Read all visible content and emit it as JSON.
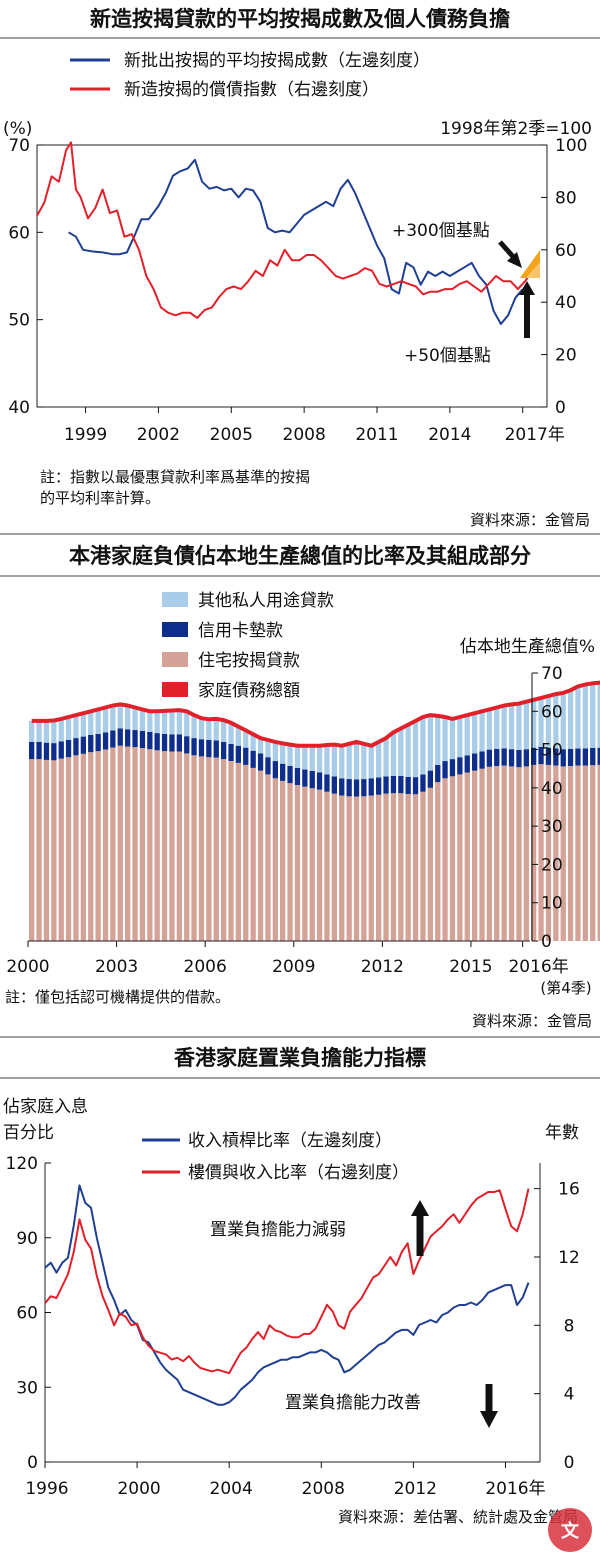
{
  "colors": {
    "blue": "#1f3f93",
    "red": "#e2202a",
    "light_blue": "#a9cde9",
    "navy": "#0e2e8c",
    "pink": "#d4a297",
    "ink": "#111111"
  },
  "chart_data": [
    {
      "type": "line",
      "title": "新造按揭貸款的平均按揭成數及個人債務負擔",
      "legend": [
        "新批出按揭的平均按揭成數（左邊刻度）",
        "新造按揭的償債指數（右邊刻度）"
      ],
      "left_unit": "(%)",
      "right_unit": "1998年第2季=100",
      "left_ticks": [
        "40",
        "50",
        "60",
        "70"
      ],
      "right_ticks": [
        "0",
        "20",
        "40",
        "60",
        "80",
        "100"
      ],
      "left_ylim": [
        40,
        70
      ],
      "right_ylim": [
        0,
        100
      ],
      "xlim": [
        1997,
        2018
      ],
      "x_ticks": [
        1999,
        2002,
        2005,
        2008,
        2011,
        2014,
        2017
      ],
      "x_tick_labels": [
        "1999",
        "2002",
        "2005",
        "2008",
        "2011",
        "2014",
        "2017年"
      ],
      "annotations": [
        "+300個基點",
        "+50個基點"
      ],
      "note_lines": [
        "註：指數以最優惠貸款利率爲基準的按揭",
        "的平均利率計算。"
      ],
      "source": "資料來源：金管局",
      "series": [
        {
          "name": "平均按揭成數",
          "axis": "left",
          "x": [
            1998.3,
            1998.6,
            1998.9,
            1999.3,
            1999.7,
            2000.1,
            2000.4,
            2000.7,
            2001.0,
            2001.3,
            2001.6,
            2002.0,
            2002.3,
            2002.6,
            2002.9,
            2003.2,
            2003.5,
            2003.8,
            2004.1,
            2004.4,
            2004.7,
            2005.0,
            2005.3,
            2005.6,
            2005.9,
            2006.2,
            2006.5,
            2006.8,
            2007.1,
            2007.4,
            2007.7,
            2008.0,
            2008.3,
            2008.6,
            2008.9,
            2009.2,
            2009.5,
            2009.8,
            2010.1,
            2010.4,
            2010.7,
            2011.0,
            2011.3,
            2011.6,
            2011.9,
            2012.2,
            2012.5,
            2012.8,
            2013.1,
            2013.4,
            2013.7,
            2014.0,
            2014.3,
            2014.6,
            2014.9,
            2015.2,
            2015.5,
            2015.8,
            2016.1,
            2016.4,
            2016.7,
            2017.0
          ],
          "values": [
            60,
            59.5,
            58,
            57.8,
            57.7,
            57.5,
            57.5,
            57.7,
            59.5,
            61.5,
            61.5,
            63,
            64.5,
            66.5,
            67,
            67.3,
            68.3,
            65.8,
            65,
            65.2,
            64.8,
            65,
            64,
            65,
            64.8,
            63.5,
            60.5,
            60,
            60.2,
            60,
            61,
            62,
            62.5,
            63,
            63.5,
            63,
            65,
            66,
            64.5,
            62.5,
            60.5,
            58.5,
            57,
            53.5,
            53,
            56.5,
            56,
            54,
            55.5,
            55,
            55.5,
            55,
            55.5,
            56,
            56.5,
            55,
            54,
            51,
            49.5,
            50.5,
            52.5,
            53.5
          ]
        },
        {
          "name": "償債指數",
          "axis": "right",
          "x": [
            1997.0,
            1997.3,
            1997.6,
            1997.9,
            1998.2,
            1998.4,
            1998.6,
            1998.8,
            1999.1,
            1999.4,
            1999.7,
            2000.0,
            2000.3,
            2000.6,
            2000.9,
            2001.2,
            2001.5,
            2001.8,
            2002.1,
            2002.4,
            2002.7,
            2003.0,
            2003.3,
            2003.6,
            2003.9,
            2004.2,
            2004.5,
            2004.8,
            2005.1,
            2005.4,
            2005.7,
            2006.0,
            2006.3,
            2006.6,
            2006.9,
            2007.2,
            2007.5,
            2007.8,
            2008.1,
            2008.4,
            2008.7,
            2009.0,
            2009.3,
            2009.6,
            2009.9,
            2010.2,
            2010.5,
            2010.8,
            2011.1,
            2011.4,
            2011.7,
            2012.0,
            2012.3,
            2012.6,
            2012.9,
            2013.2,
            2013.5,
            2013.8,
            2014.1,
            2014.4,
            2014.7,
            2015.0,
            2015.3,
            2015.6,
            2015.9,
            2016.2,
            2016.5,
            2016.8,
            2017.1,
            2017.4
          ],
          "values": [
            73,
            78,
            88,
            86,
            98,
            101,
            83,
            80,
            72,
            76,
            83,
            74,
            75,
            65,
            66,
            60,
            50,
            45,
            38,
            36,
            35,
            36,
            36,
            34,
            37,
            38,
            42,
            45,
            46,
            45,
            48,
            52,
            50,
            56,
            54,
            60,
            56,
            56,
            58,
            58,
            56,
            53,
            50,
            49,
            50,
            51,
            53,
            52,
            47,
            46,
            47,
            48,
            47,
            46,
            43,
            44,
            44,
            45,
            45,
            47,
            48,
            46,
            44,
            47,
            50,
            48,
            48,
            45,
            48,
            52
          ]
        }
      ]
    },
    {
      "type": "bar",
      "title": "本港家庭負債佔本地生產總值的比率及其組成部分",
      "legend": [
        "其他私人用途貸款",
        "信用卡墊款",
        "住宅按揭貸款",
        "家庭債務總額"
      ],
      "right_unit": "佔本地生產總值%",
      "y_ticks": [
        "0",
        "10",
        "20",
        "30",
        "40",
        "50",
        "60",
        "70"
      ],
      "ylim": [
        0,
        70
      ],
      "xlim": [
        2000,
        2017
      ],
      "x_ticks": [
        2000,
        2003,
        2006,
        2009,
        2012,
        2015,
        2016.75
      ],
      "x_tick_labels": [
        "2000",
        "2003",
        "2006",
        "2009",
        "2012",
        "2015",
        "2016年"
      ],
      "x_sublabel": "(第4季)",
      "note": "註：僅包括認可機構提供的借款。",
      "source": "資料來源：金管局",
      "bar_start": 2000.125,
      "bar_step": 0.25,
      "mortgage": [
        47.5,
        47.5,
        47.3,
        47.2,
        47.6,
        48.0,
        48.5,
        48.9,
        49.3,
        49.6,
        50.0,
        50.5,
        51.0,
        50.8,
        50.6,
        50.4,
        50.1,
        49.8,
        49.6,
        49.5,
        49.5,
        49.0,
        48.5,
        48.2,
        48.0,
        47.9,
        47.5,
        47.0,
        46.5,
        46.0,
        45.2,
        44.5,
        43.5,
        42.5,
        41.8,
        41.2,
        40.7,
        40.3,
        39.9,
        39.5,
        39.0,
        38.5,
        38.0,
        37.8,
        37.7,
        37.8,
        38.0,
        38.2,
        38.5,
        38.6,
        38.6,
        38.4,
        38.3,
        39.0,
        40.0,
        41.5,
        42.5,
        43.0,
        43.5,
        44.0,
        44.5,
        45.0,
        45.5,
        45.7,
        45.8,
        45.6,
        45.4,
        45.6,
        46.0,
        46.2,
        46.0,
        45.8,
        45.6,
        45.7,
        45.8,
        45.8,
        45.9,
        46.0,
        46.2,
        46.5,
        46.8,
        47.0,
        47.2,
        47.4,
        47.5,
        47.6,
        47.7,
        47.8
      ],
      "card": [
        4.5,
        4.5,
        4.5,
        4.5,
        4.5,
        4.5,
        4.5,
        4.5,
        4.5,
        4.5,
        4.5,
        4.5,
        4.5,
        4.5,
        4.5,
        4.5,
        4.5,
        4.5,
        4.5,
        4.5,
        4.5,
        4.5,
        4.5,
        4.5,
        4.5,
        4.5,
        4.5,
        4.5,
        4.5,
        4.5,
        4.5,
        4.5,
        4.5,
        4.5,
        4.5,
        4.5,
        4.5,
        4.5,
        4.5,
        4.5,
        4.5,
        4.5,
        4.5,
        4.5,
        4.5,
        4.5,
        4.5,
        4.5,
        4.5,
        4.5,
        4.5,
        4.5,
        4.5,
        4.5,
        4.5,
        4.5,
        4.5,
        4.5,
        4.5,
        4.5,
        4.5,
        4.5,
        4.5,
        4.5,
        4.5,
        4.5,
        4.5,
        4.5,
        4.5,
        4.5,
        4.5,
        4.5,
        4.5,
        4.5,
        4.5,
        4.5,
        4.5,
        4.5,
        4.5,
        4.5,
        4.5,
        4.5,
        4.5,
        4.5,
        4.5,
        4.5,
        4.5,
        4.5
      ],
      "total": [
        57.5,
        57.5,
        57.5,
        57.6,
        58.0,
        58.5,
        59.0,
        59.5,
        60.0,
        60.5,
        61.0,
        61.5,
        61.8,
        61.5,
        61.0,
        60.5,
        60.0,
        60.0,
        60.1,
        60.2,
        60.3,
        60.0,
        59.0,
        58.2,
        57.9,
        58.0,
        57.7,
        57.0,
        56.0,
        55.0,
        54.0,
        53.0,
        52.5,
        52.0,
        51.6,
        51.3,
        51.0,
        51.0,
        51.0,
        51.0,
        51.2,
        51.3,
        51.0,
        51.5,
        52.0,
        51.5,
        51.0,
        52.0,
        53.0,
        54.5,
        55.5,
        56.5,
        57.5,
        58.5,
        59.0,
        58.8,
        58.5,
        58.0,
        58.5,
        59.0,
        59.5,
        60.0,
        60.5,
        61.0,
        61.5,
        61.8,
        62.0,
        62.5,
        63.0,
        63.5,
        64.0,
        64.5,
        64.8,
        65.5,
        66.5,
        67.0,
        67.3,
        67.5,
        67.7,
        67.8,
        67.7,
        67.5,
        67.3,
        67.5,
        67.8,
        68.0,
        68.2,
        68.5
      ]
    },
    {
      "type": "line",
      "title": "香港家庭置業負擔能力指標",
      "left_unit_lines": [
        "佔家庭入息",
        "百分比"
      ],
      "right_unit": "年數",
      "legend": [
        "收入槓桿比率（左邊刻度）",
        "樓價與收入比率（右邊刻度）"
      ],
      "left_ticks": [
        "0",
        "30",
        "60",
        "90",
        "120"
      ],
      "right_ticks": [
        "0",
        "4",
        "8",
        "12",
        "16"
      ],
      "left_ylim": [
        0,
        120
      ],
      "right_ylim": [
        0,
        17.5
      ],
      "xlim": [
        1996,
        2017.5
      ],
      "x_ticks": [
        1996,
        2000,
        2004,
        2008,
        2012,
        2016
      ],
      "x_tick_labels": [
        "1996",
        "2000",
        "2004",
        "2008",
        "2012",
        "2016年"
      ],
      "annotations": [
        "置業負擔能力減弱",
        "置業負擔能力改善"
      ],
      "source": "資料來源：差估署、統計處及金管局",
      "series": [
        {
          "name": "收入槓桿比率",
          "axis": "left",
          "x": [
            1996.0,
            1996.25,
            1996.5,
            1996.75,
            1997.0,
            1997.25,
            1997.5,
            1997.75,
            1998.0,
            1998.25,
            1998.5,
            1998.75,
            1999.0,
            1999.25,
            1999.5,
            1999.75,
            2000.0,
            2000.25,
            2000.5,
            2000.75,
            2001.0,
            2001.25,
            2001.5,
            2001.75,
            2002.0,
            2002.25,
            2002.5,
            2002.75,
            2003.0,
            2003.25,
            2003.5,
            2003.75,
            2004.0,
            2004.25,
            2004.5,
            2004.75,
            2005.0,
            2005.25,
            2005.5,
            2005.75,
            2006.0,
            2006.25,
            2006.5,
            2006.75,
            2007.0,
            2007.25,
            2007.5,
            2007.75,
            2008.0,
            2008.25,
            2008.5,
            2008.75,
            2009.0,
            2009.25,
            2009.5,
            2009.75,
            2010.0,
            2010.25,
            2010.5,
            2010.75,
            2011.0,
            2011.25,
            2011.5,
            2011.75,
            2012.0,
            2012.25,
            2012.5,
            2012.75,
            2013.0,
            2013.25,
            2013.5,
            2013.75,
            2014.0,
            2014.25,
            2014.5,
            2014.75,
            2015.0,
            2015.25,
            2015.5,
            2015.75,
            2016.0,
            2016.25,
            2016.5,
            2016.75,
            2017.0
          ],
          "values": [
            78,
            80,
            76,
            80,
            82,
            95,
            111,
            104,
            102,
            90,
            80,
            70,
            65,
            59,
            61,
            57,
            55,
            49,
            48,
            44,
            40,
            37,
            35,
            33,
            29,
            28,
            27,
            26,
            25,
            24,
            23,
            23,
            24,
            26,
            29,
            31,
            33,
            36,
            38,
            39,
            40,
            41,
            41,
            42,
            42,
            43,
            44,
            44,
            45,
            44,
            42,
            41,
            36,
            37,
            39,
            41,
            43,
            45,
            47,
            48,
            50,
            52,
            53,
            53,
            51,
            55,
            56,
            57,
            56,
            59,
            60,
            62,
            63,
            63,
            64,
            63,
            65,
            68,
            69,
            70,
            71,
            71,
            63,
            66,
            72
          ]
        },
        {
          "name": "樓價與收入比率",
          "axis": "right",
          "x": [
            1996.0,
            1996.25,
            1996.5,
            1996.75,
            1997.0,
            1997.25,
            1997.5,
            1997.75,
            1998.0,
            1998.25,
            1998.5,
            1998.75,
            1999.0,
            1999.25,
            1999.5,
            1999.75,
            2000.0,
            2000.25,
            2000.5,
            2000.75,
            2001.0,
            2001.25,
            2001.5,
            2001.75,
            2002.0,
            2002.25,
            2002.5,
            2002.75,
            2003.0,
            2003.25,
            2003.5,
            2003.75,
            2004.0,
            2004.25,
            2004.5,
            2004.75,
            2005.0,
            2005.25,
            2005.5,
            2005.75,
            2006.0,
            2006.25,
            2006.5,
            2006.75,
            2007.0,
            2007.25,
            2007.5,
            2007.75,
            2008.0,
            2008.25,
            2008.5,
            2008.75,
            2009.0,
            2009.25,
            2009.5,
            2009.75,
            2010.0,
            2010.25,
            2010.5,
            2010.75,
            2011.0,
            2011.25,
            2011.5,
            2011.75,
            2012.0,
            2012.25,
            2012.5,
            2012.75,
            2013.0,
            2013.25,
            2013.5,
            2013.75,
            2014.0,
            2014.25,
            2014.5,
            2014.75,
            2015.0,
            2015.25,
            2015.5,
            2015.75,
            2016.0,
            2016.25,
            2016.5,
            2016.75,
            2017.0
          ],
          "values": [
            9.3,
            9.7,
            9.6,
            10.3,
            11.0,
            12.3,
            14.2,
            13.0,
            12.5,
            10.9,
            9.7,
            8.9,
            8.0,
            8.7,
            8.5,
            8.0,
            8.1,
            7.3,
            6.8,
            6.5,
            6.4,
            6.3,
            6.0,
            6.1,
            5.9,
            6.2,
            5.8,
            5.5,
            5.4,
            5.3,
            5.4,
            5.3,
            5.2,
            5.8,
            6.4,
            6.7,
            7.2,
            7.6,
            7.2,
            8.0,
            7.7,
            7.6,
            7.4,
            7.3,
            7.3,
            7.5,
            7.5,
            7.8,
            8.5,
            9.2,
            8.8,
            8.0,
            7.8,
            8.8,
            9.2,
            9.6,
            10.2,
            10.8,
            11.0,
            11.5,
            12.0,
            11.5,
            12.3,
            12.8,
            11.0,
            11.8,
            12.5,
            13.2,
            13.5,
            13.8,
            14.2,
            14.5,
            14.0,
            14.5,
            15.0,
            15.4,
            15.6,
            15.8,
            15.8,
            15.9,
            14.8,
            13.8,
            13.5,
            14.5,
            16.0
          ]
        }
      ]
    }
  ]
}
